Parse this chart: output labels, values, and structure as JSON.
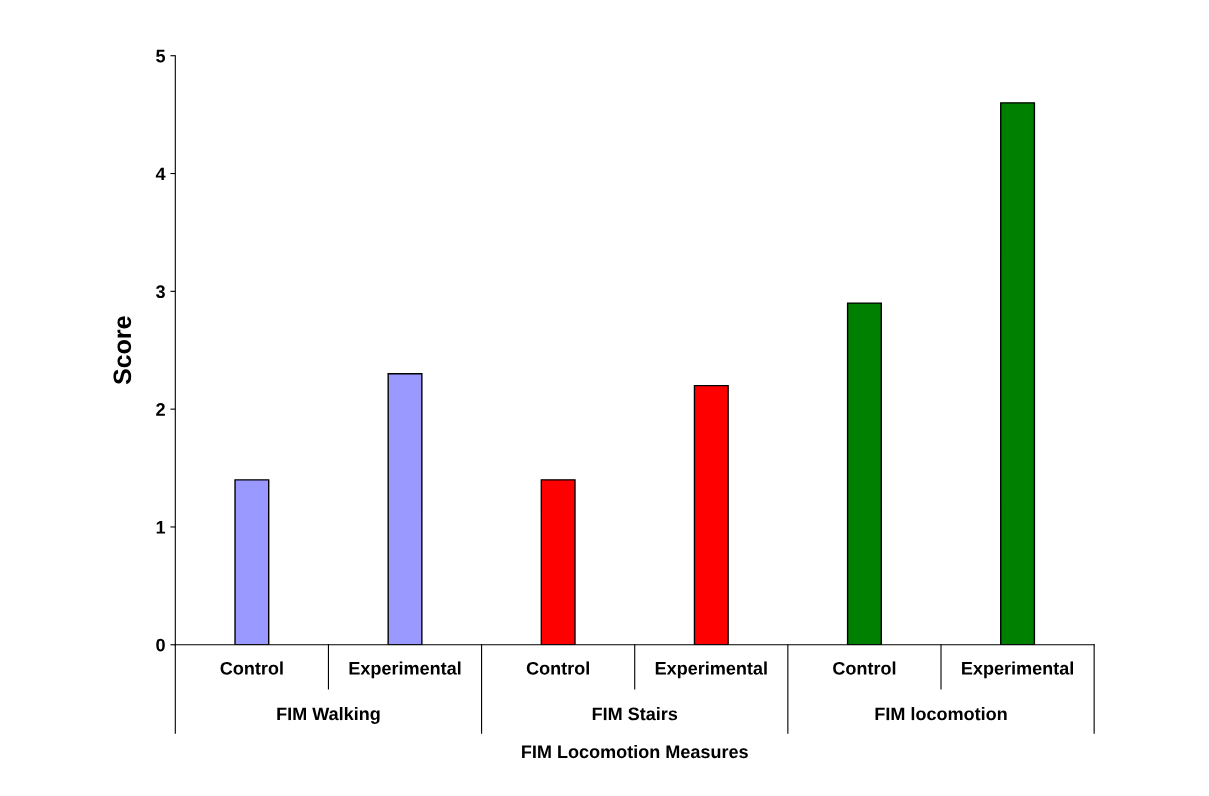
{
  "chart_data": {
    "type": "bar",
    "ylabel": "Score",
    "xlabel": "FIM Locomotion Measures",
    "categories": [
      "Control",
      "Experimental",
      "Control",
      "Experimental",
      "Control",
      "Experimental"
    ],
    "values": [
      1.4,
      2.3,
      1.4,
      2.2,
      2.9,
      4.6
    ],
    "colors": [
      "#9999ff",
      "#9999ff",
      "#ff0000",
      "#ff0000",
      "#008000",
      "#008000"
    ],
    "annotations": [
      "FIM Walking",
      "FIM Stairs",
      "FIM locomotion"
    ],
    "ylim": [
      0,
      5
    ],
    "yticks": [
      0,
      1,
      2,
      3,
      4,
      5
    ],
    "grid": false
  }
}
